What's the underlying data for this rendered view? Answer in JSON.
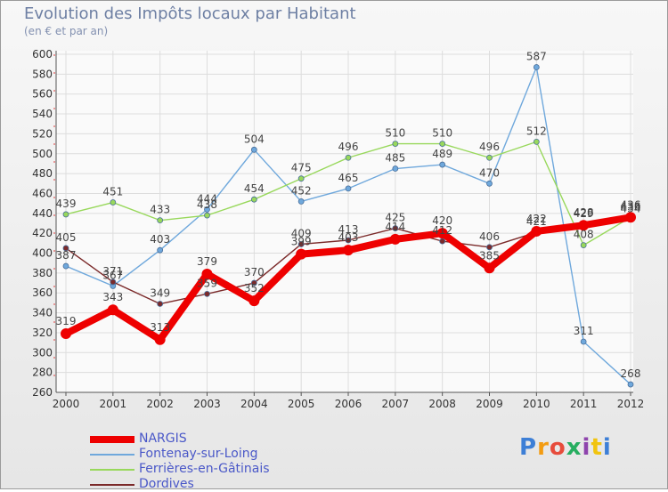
{
  "chart_data": {
    "type": "line",
    "title": "Evolution des Impôts locaux par Habitant",
    "subtitle": "(en € et par an)",
    "xlabel": "",
    "ylabel": "",
    "x": [
      "2000",
      "2001",
      "2002",
      "2003",
      "2004",
      "2005",
      "2006",
      "2007",
      "2008",
      "2009",
      "2010",
      "2011",
      "2012"
    ],
    "ylim": [
      260,
      600
    ],
    "yticks": [
      260,
      280,
      300,
      320,
      340,
      360,
      380,
      400,
      420,
      440,
      460,
      480,
      500,
      520,
      540,
      560,
      580,
      600
    ],
    "grid": true,
    "legend_position": "bottom-left",
    "series": [
      {
        "name": "NARGIS",
        "color": "#ee0000",
        "values": [
          319,
          343,
          313,
          379,
          352,
          399,
          403,
          414,
          420,
          385,
          422,
          428,
          436
        ]
      },
      {
        "name": "Fontenay-sur-Loing",
        "color": "#6fa8dc",
        "values": [
          387,
          367,
          403,
          444,
          504,
          452,
          465,
          485,
          489,
          470,
          587,
          311,
          268
        ]
      },
      {
        "name": "Ferrières-en-Gâtinais",
        "color": "#98d85b",
        "values": [
          439,
          451,
          433,
          438,
          454,
          475,
          496,
          510,
          510,
          496,
          512,
          408,
          436
        ]
      },
      {
        "name": "Dordives",
        "color": "#7b2a2a",
        "values": [
          405,
          371,
          349,
          359,
          370,
          409,
          413,
          425,
          412,
          406,
          421,
          429,
          434
        ]
      }
    ]
  },
  "brand": {
    "letters": [
      "P",
      "r",
      "o",
      "x",
      "i",
      "t",
      "i"
    ],
    "colors": [
      "#3d7fd6",
      "#f39c12",
      "#e74c3c",
      "#27ae60",
      "#8e44ad",
      "#f1c40f",
      "#3d7fd6"
    ]
  }
}
